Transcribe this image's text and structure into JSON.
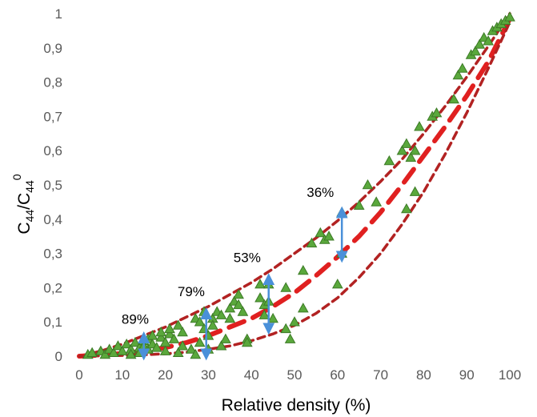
{
  "chart_data": {
    "type": "scatter",
    "xlabel": "Relative density (%)",
    "ylabel": {
      "base": "C",
      "sub": "44",
      "sep": "/C",
      "sub2": "44",
      "sup": "0"
    },
    "xlim": [
      0,
      100
    ],
    "ylim": [
      0,
      1
    ],
    "x_ticks": [
      "0",
      "10",
      "20",
      "30",
      "40",
      "50",
      "60",
      "70",
      "80",
      "90",
      "100"
    ],
    "y_ticks": [
      "0",
      "0,1",
      "0,2",
      "0,3",
      "0,4",
      "0,5",
      "0,6",
      "0,7",
      "0,8",
      "0,9",
      "1"
    ],
    "grid": false,
    "legend": "none",
    "colors": {
      "points": "#5aa83c",
      "points_edge": "#3c7a26",
      "upper_bound": "#b22222",
      "lower_bound": "#b22222",
      "mean_curve": "#e02020",
      "arrows": "#4a90d9"
    },
    "series": [
      {
        "type": "scatter",
        "marker": "triangle",
        "points": [
          [
            2,
            0.005
          ],
          [
            3,
            0.01
          ],
          [
            5,
            0.015
          ],
          [
            6,
            0.005
          ],
          [
            7,
            0.02
          ],
          [
            8,
            0.01
          ],
          [
            9,
            0.03
          ],
          [
            10,
            0.015
          ],
          [
            11,
            0.035
          ],
          [
            12,
            0.02
          ],
          [
            12,
            0.005
          ],
          [
            13,
            0.04
          ],
          [
            14,
            0.025
          ],
          [
            14,
            0.01
          ],
          [
            15,
            0.045
          ],
          [
            15,
            0.03
          ],
          [
            16,
            0.02
          ],
          [
            16,
            0.05
          ],
          [
            17,
            0.035
          ],
          [
            17,
            0.06
          ],
          [
            18,
            0.025
          ],
          [
            19,
            0.055
          ],
          [
            19,
            0.07
          ],
          [
            20,
            0.04
          ],
          [
            20,
            0.015
          ],
          [
            21,
            0.065
          ],
          [
            21,
            0.08
          ],
          [
            22,
            0.05
          ],
          [
            23,
            0.09
          ],
          [
            23,
            0.01
          ],
          [
            24,
            0.07
          ],
          [
            24,
            0.03
          ],
          [
            26,
            0.02
          ],
          [
            27,
            0.11
          ],
          [
            27,
            0.005
          ],
          [
            28,
            0.1
          ],
          [
            28,
            0.04
          ],
          [
            29,
            0.13
          ],
          [
            29,
            0.08
          ],
          [
            30,
            0.06
          ],
          [
            30,
            0.02
          ],
          [
            31,
            0.11
          ],
          [
            31,
            0.09
          ],
          [
            32,
            0.13
          ],
          [
            33,
            0.12
          ],
          [
            33,
            0.03
          ],
          [
            34,
            0.05
          ],
          [
            35,
            0.14
          ],
          [
            35,
            0.11
          ],
          [
            36,
            0.16
          ],
          [
            37,
            0.18
          ],
          [
            37,
            0.15
          ],
          [
            38,
            0.13
          ],
          [
            39,
            0.05
          ],
          [
            39,
            0.04
          ],
          [
            42,
            0.21
          ],
          [
            42,
            0.17
          ],
          [
            43,
            0.15
          ],
          [
            43,
            0.12
          ],
          [
            44,
            0.21
          ],
          [
            44,
            0.16
          ],
          [
            45,
            0.11
          ],
          [
            48,
            0.2
          ],
          [
            48,
            0.08
          ],
          [
            49,
            0.05
          ],
          [
            50,
            0.1
          ],
          [
            52,
            0.25
          ],
          [
            52,
            0.14
          ],
          [
            54,
            0.33
          ],
          [
            56,
            0.36
          ],
          [
            57,
            0.34
          ],
          [
            58,
            0.35
          ],
          [
            60,
            0.21
          ],
          [
            61,
            0.42
          ],
          [
            61,
            0.3
          ],
          [
            65,
            0.44
          ],
          [
            67,
            0.5
          ],
          [
            69,
            0.45
          ],
          [
            72,
            0.57
          ],
          [
            75,
            0.6
          ],
          [
            76,
            0.62
          ],
          [
            76,
            0.43
          ],
          [
            77,
            0.58
          ],
          [
            78,
            0.6
          ],
          [
            78,
            0.48
          ],
          [
            79,
            0.67
          ],
          [
            82,
            0.7
          ],
          [
            83,
            0.71
          ],
          [
            87,
            0.75
          ],
          [
            88,
            0.82
          ],
          [
            89,
            0.84
          ],
          [
            91,
            0.88
          ],
          [
            92,
            0.89
          ],
          [
            93,
            0.91
          ],
          [
            94,
            0.93
          ],
          [
            95,
            0.92
          ],
          [
            96,
            0.95
          ],
          [
            97,
            0.96
          ],
          [
            98,
            0.97
          ],
          [
            99,
            0.98
          ],
          [
            100,
            0.99
          ]
        ]
      },
      {
        "type": "line",
        "style": "dashed",
        "role": "upper-bound",
        "x": [
          0,
          5,
          10,
          15,
          20,
          25,
          30,
          35,
          40,
          45,
          50,
          55,
          60,
          65,
          70,
          75,
          80,
          85,
          90,
          95,
          100
        ],
        "y": [
          0,
          0.015,
          0.035,
          0.06,
          0.085,
          0.115,
          0.145,
          0.18,
          0.215,
          0.255,
          0.3,
          0.345,
          0.395,
          0.45,
          0.51,
          0.575,
          0.65,
          0.73,
          0.815,
          0.905,
          1.0
        ]
      },
      {
        "type": "line",
        "style": "dashed",
        "role": "mean",
        "x": [
          0,
          5,
          10,
          15,
          20,
          25,
          30,
          35,
          40,
          45,
          50,
          55,
          60,
          65,
          70,
          75,
          80,
          85,
          90,
          95,
          100
        ],
        "y": [
          0,
          0.003,
          0.008,
          0.015,
          0.025,
          0.04,
          0.06,
          0.085,
          0.11,
          0.145,
          0.185,
          0.235,
          0.29,
          0.35,
          0.42,
          0.5,
          0.585,
          0.67,
          0.76,
          0.86,
          0.985
        ]
      },
      {
        "type": "line",
        "style": "dashed",
        "role": "lower-bound",
        "x": [
          0,
          5,
          10,
          15,
          20,
          25,
          30,
          35,
          40,
          45,
          50,
          55,
          60,
          65,
          70,
          75,
          80,
          85,
          90,
          95,
          100
        ],
        "y": [
          0,
          0.001,
          0.002,
          0.004,
          0.007,
          0.012,
          0.02,
          0.03,
          0.045,
          0.065,
          0.09,
          0.125,
          0.17,
          0.23,
          0.3,
          0.385,
          0.48,
          0.59,
          0.71,
          0.84,
          0.975
        ]
      }
    ],
    "arrows": [
      {
        "x": 15,
        "y_from": 0.005,
        "y_to": 0.055
      },
      {
        "x": 29.5,
        "y_from": 0.005,
        "y_to": 0.125
      },
      {
        "x": 44,
        "y_from": 0.08,
        "y_to": 0.225
      },
      {
        "x": 61,
        "y_from": 0.29,
        "y_to": 0.42
      }
    ],
    "annotations": [
      {
        "text": "89%",
        "x": 13,
        "y": 0.095
      },
      {
        "text": "79%",
        "x": 26,
        "y": 0.175
      },
      {
        "text": "53%",
        "x": 39,
        "y": 0.275
      },
      {
        "text": "36%",
        "x": 56,
        "y": 0.465
      }
    ]
  }
}
